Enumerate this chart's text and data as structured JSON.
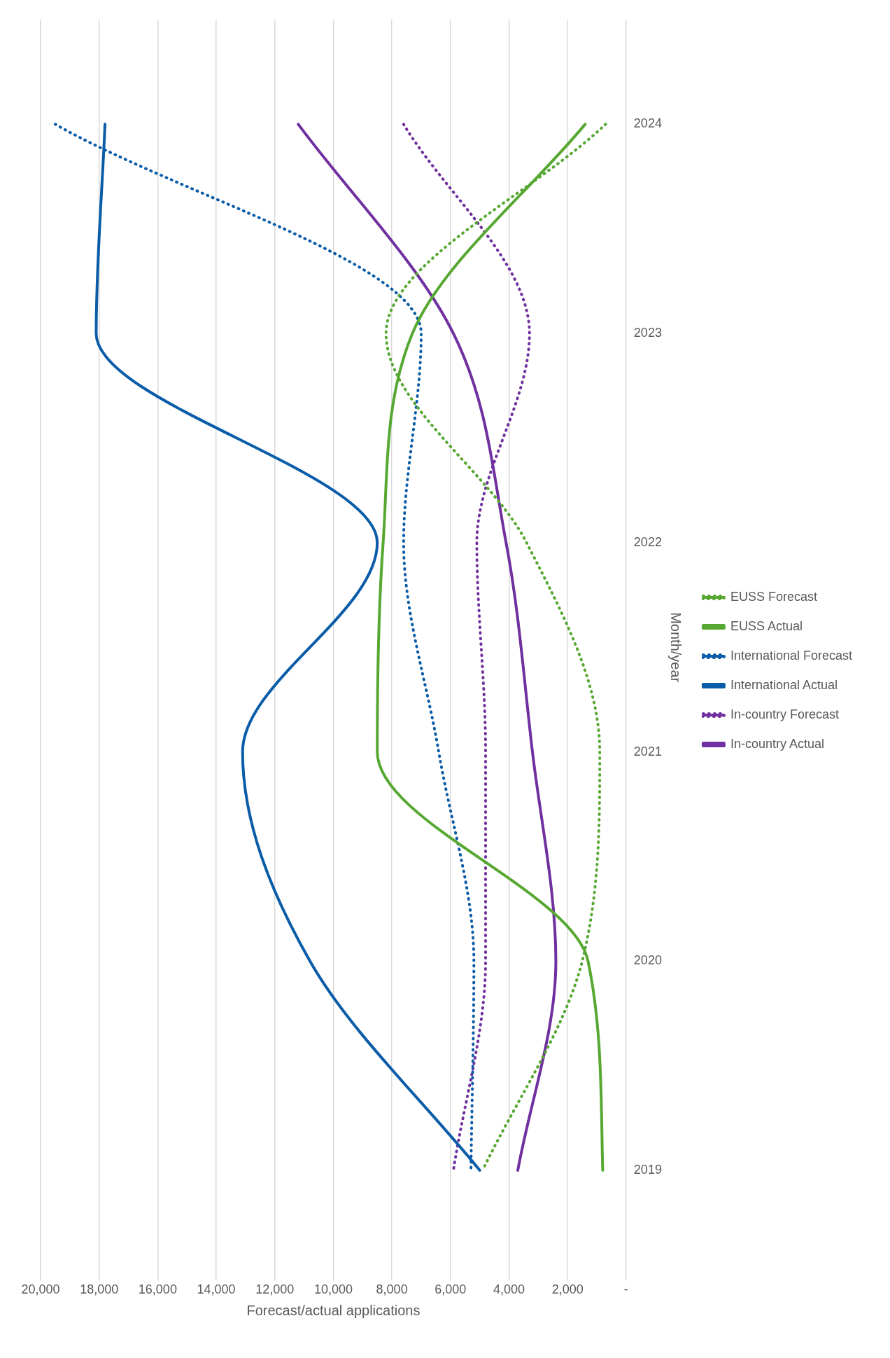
{
  "chart_data": {
    "type": "line",
    "orientation": "horizontal",
    "xlabel": "Forecast/actual applications",
    "ylabel": "Month/year",
    "categories": [
      "2024",
      "2023",
      "2022",
      "2021",
      "2020",
      "2019"
    ],
    "xlim": [
      20000,
      0
    ],
    "xticks": [
      {
        "value": 0,
        "label": "-"
      },
      {
        "value": 2000,
        "label": "2,000"
      },
      {
        "value": 4000,
        "label": "4,000"
      },
      {
        "value": 6000,
        "label": "6,000"
      },
      {
        "value": 8000,
        "label": "8,000"
      },
      {
        "value": 10000,
        "label": "10,000"
      },
      {
        "value": 12000,
        "label": "12,000"
      },
      {
        "value": 14000,
        "label": "14,000"
      },
      {
        "value": 16000,
        "label": "16,000"
      },
      {
        "value": 18000,
        "label": "18,000"
      },
      {
        "value": 20000,
        "label": "20,000"
      }
    ],
    "grid": "x",
    "legend": "right",
    "marker": "none",
    "series": [
      {
        "name": "EUSS Forecast",
        "color": "#57a832",
        "line_style": "dotted",
        "values": [
          700,
          8200,
          3400,
          900,
          1500,
          4900
        ]
      },
      {
        "name": "EUSS Actual",
        "color": "#57a832",
        "line_style": "solid",
        "values": [
          1400,
          7300,
          8300,
          8500,
          1300,
          800
        ]
      },
      {
        "name": "International Forecast",
        "color": "#0a5ca8",
        "line_style": "dotted",
        "values": [
          19500,
          7000,
          7600,
          6400,
          5200,
          5300
        ]
      },
      {
        "name": "International Actual",
        "color": "#0a5ca8",
        "line_style": "solid",
        "values": [
          17800,
          18100,
          8500,
          13100,
          10800,
          5000
        ]
      },
      {
        "name": "In-country Forecast",
        "color": "#7030a0",
        "line_style": "dotted",
        "values": [
          7600,
          3300,
          5100,
          4800,
          4800,
          5900
        ]
      },
      {
        "name": "In-country Actual",
        "color": "#7030a0",
        "line_style": "solid",
        "values": [
          11200,
          5900,
          4100,
          3200,
          2400,
          3700
        ]
      }
    ]
  }
}
